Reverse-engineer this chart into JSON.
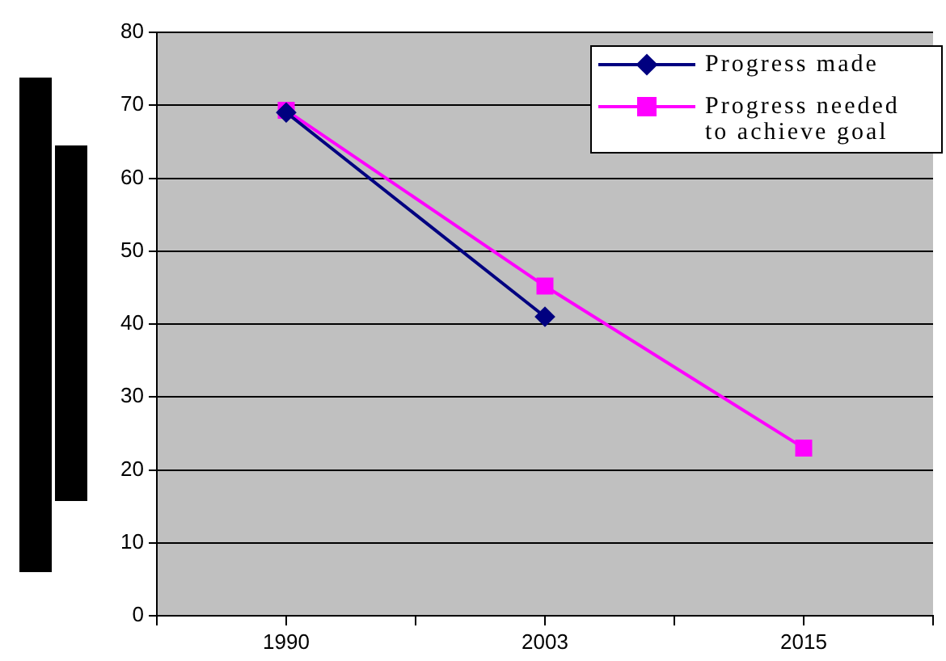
{
  "chart_data": {
    "type": "line",
    "categories": [
      null,
      "1990",
      null,
      "2003",
      null,
      "2015",
      null
    ],
    "series": [
      {
        "name": "Progress made",
        "color": "#000080",
        "marker": "diamond",
        "values": [
          null,
          69,
          null,
          41,
          null,
          null,
          null
        ]
      },
      {
        "name": "Progress needed to achieve goal",
        "color": "#ff00ff",
        "marker": "square",
        "values": [
          null,
          69.3,
          null,
          45.2,
          null,
          23,
          null
        ]
      }
    ],
    "ylim": [
      0,
      80
    ],
    "yticks": [
      0,
      10,
      20,
      30,
      40,
      50,
      60,
      70,
      80
    ],
    "grid": "y",
    "legend": "top right",
    "line_style": "solid"
  }
}
